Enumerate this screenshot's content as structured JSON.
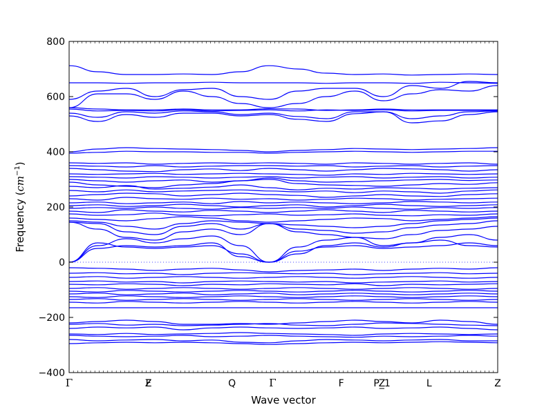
{
  "chart_data": {
    "type": "line",
    "title": "",
    "xlabel": "Wave vector",
    "ylabel_main": "Frequency (",
    "ylabel_unit": "cm",
    "ylabel_exp": "−1",
    "ylabel_close": ")",
    "ylim": [
      -400,
      800
    ],
    "yticks": [
      800,
      600,
      400,
      200,
      0,
      -200,
      -400
    ],
    "ytick_labels": [
      "800",
      "600",
      "400",
      "200",
      "0",
      "−200",
      "−400"
    ],
    "high_symmetry_points": [
      {
        "label": "Γ",
        "x": 0.0
      },
      {
        "label": "Z",
        "x": 0.185
      },
      {
        "label": "F",
        "x": 0.185
      },
      {
        "label": "Q",
        "x": 0.38
      },
      {
        "label": "Γ",
        "x": 0.475
      },
      {
        "label": "F",
        "x": 0.635
      },
      {
        "label": "P_1",
        "x": 0.73
      },
      {
        "label": "Z",
        "x": 0.73
      },
      {
        "label": "L",
        "x": 0.84
      },
      {
        "label": "Z",
        "x": 1.0
      }
    ],
    "zero_line": true,
    "band_color": "#0000ff",
    "segment_breaks": [
      0,
      0.185,
      0.38,
      0.475,
      0.635,
      0.73,
      0.84,
      1.0
    ],
    "series": [
      {
        "values": [
          712,
          690,
          680,
          680,
          682,
          680,
          690,
          712,
          700,
          685,
          680,
          682,
          678,
          680,
          682,
          680
        ]
      },
      {
        "values": [
          650,
          650,
          648,
          650,
          650,
          652,
          650,
          650,
          650,
          648,
          650,
          650,
          648,
          652,
          650,
          648
        ]
      },
      {
        "values": [
          590,
          620,
          630,
          600,
          625,
          630,
          600,
          590,
          620,
          630,
          630,
          600,
          640,
          630,
          655,
          650
        ]
      },
      {
        "values": [
          560,
          610,
          610,
          590,
          620,
          600,
          575,
          560,
          575,
          600,
          620,
          585,
          610,
          625,
          620,
          640
        ]
      },
      {
        "values": [
          560,
          555,
          552,
          552,
          555,
          552,
          552,
          556,
          555,
          550,
          552,
          555,
          552,
          552,
          552,
          552
        ]
      },
      {
        "values": [
          555,
          548,
          550,
          548,
          552,
          548,
          550,
          552,
          548,
          552,
          550,
          552,
          548,
          550,
          550,
          550
        ]
      },
      {
        "values": [
          540,
          525,
          545,
          540,
          548,
          545,
          535,
          540,
          528,
          520,
          545,
          545,
          520,
          530,
          545,
          548
        ]
      },
      {
        "values": [
          530,
          510,
          535,
          525,
          540,
          540,
          530,
          535,
          518,
          510,
          538,
          545,
          505,
          512,
          535,
          545
        ]
      },
      {
        "values": [
          400,
          410,
          415,
          412,
          410,
          408,
          405,
          400,
          405,
          408,
          412,
          410,
          408,
          410,
          412,
          415
        ]
      },
      {
        "values": [
          395,
          398,
          402,
          400,
          400,
          398,
          398,
          395,
          398,
          400,
          402,
          400,
          398,
          400,
          402,
          402
        ]
      },
      {
        "values": [
          360,
          358,
          360,
          355,
          358,
          360,
          358,
          360,
          358,
          355,
          360,
          358,
          355,
          358,
          360,
          355
        ]
      },
      {
        "values": [
          350,
          348,
          345,
          350,
          345,
          348,
          350,
          350,
          348,
          350,
          345,
          348,
          350,
          345,
          348,
          350
        ]
      },
      {
        "values": [
          340,
          335,
          330,
          328,
          335,
          338,
          332,
          340,
          335,
          330,
          335,
          340,
          338,
          335,
          330,
          335
        ]
      },
      {
        "values": [
          320,
          318,
          320,
          322,
          318,
          320,
          322,
          320,
          318,
          315,
          320,
          318,
          322,
          320,
          318,
          320
        ]
      },
      {
        "values": [
          310,
          308,
          305,
          310,
          308,
          305,
          308,
          310,
          305,
          308,
          310,
          305,
          308,
          310,
          305,
          308
        ]
      },
      {
        "values": [
          300,
          295,
          290,
          295,
          298,
          290,
          295,
          305,
          295,
          290,
          292,
          295,
          298,
          300,
          296,
          298
        ]
      },
      {
        "values": [
          290,
          280,
          275,
          270,
          280,
          285,
          295,
          300,
          285,
          280,
          278,
          275,
          280,
          285,
          282,
          288
        ]
      },
      {
        "values": [
          275,
          270,
          278,
          265,
          268,
          272,
          280,
          270,
          262,
          268,
          265,
          270,
          268,
          265,
          268,
          270
        ]
      },
      {
        "values": [
          260,
          255,
          262,
          255,
          258,
          260,
          262,
          258,
          255,
          258,
          252,
          258,
          255,
          250,
          258,
          262
        ]
      },
      {
        "values": [
          240,
          245,
          250,
          248,
          240,
          245,
          250,
          245,
          242,
          235,
          240,
          245,
          240,
          238,
          245,
          248
        ]
      },
      {
        "values": [
          230,
          225,
          235,
          230,
          228,
          232,
          228,
          230,
          225,
          228,
          232,
          230,
          225,
          228,
          230,
          232
        ]
      },
      {
        "values": [
          215,
          218,
          212,
          215,
          218,
          212,
          220,
          215,
          218,
          215,
          212,
          215,
          220,
          218,
          215,
          218
        ]
      },
      {
        "values": [
          205,
          208,
          202,
          205,
          210,
          205,
          200,
          205,
          208,
          200,
          205,
          210,
          205,
          202,
          205,
          208
        ]
      },
      {
        "values": [
          195,
          198,
          195,
          200,
          195,
          192,
          198,
          195,
          198,
          195,
          200,
          195,
          192,
          198,
          195,
          198
        ]
      },
      {
        "values": [
          185,
          180,
          190,
          185,
          182,
          188,
          185,
          180,
          185,
          190,
          185,
          180,
          188,
          185,
          182,
          185
        ]
      },
      {
        "values": [
          175,
          170,
          172,
          178,
          170,
          168,
          172,
          175,
          170,
          172,
          175,
          170,
          168,
          172,
          170,
          175
        ]
      },
      {
        "values": [
          160,
          155,
          150,
          158,
          165,
          160,
          150,
          145,
          150,
          155,
          160,
          158,
          150,
          155,
          160,
          165
        ]
      },
      {
        "values": [
          150,
          145,
          130,
          120,
          140,
          150,
          145,
          140,
          135,
          130,
          125,
          130,
          140,
          150,
          155,
          160
        ]
      },
      {
        "values": [
          145,
          140,
          110,
          100,
          130,
          140,
          120,
          140,
          120,
          115,
          105,
          110,
          125,
          135,
          140,
          150
        ]
      },
      {
        "values": [
          145,
          120,
          90,
          80,
          110,
          120,
          100,
          140,
          110,
          100,
          90,
          85,
          100,
          115,
          120,
          130
        ]
      },
      {
        "values": [
          0,
          60,
          85,
          70,
          85,
          95,
          60,
          0,
          55,
          80,
          90,
          60,
          70,
          90,
          100,
          80
        ]
      },
      {
        "values": [
          0,
          70,
          55,
          50,
          55,
          60,
          30,
          0,
          40,
          55,
          60,
          50,
          55,
          60,
          70,
          60
        ]
      },
      {
        "values": [
          0,
          50,
          60,
          55,
          60,
          70,
          20,
          0,
          30,
          60,
          70,
          55,
          70,
          80,
          60,
          55
        ]
      },
      {
        "values": [
          -20,
          -22,
          -25,
          -30,
          -25,
          -22,
          -28,
          -35,
          -30,
          -28,
          -25,
          -30,
          -25,
          -22,
          -25,
          -20
        ]
      },
      {
        "values": [
          -40,
          -38,
          -42,
          -40,
          -45,
          -40,
          -38,
          -40,
          -42,
          -40,
          -45,
          -42,
          -40,
          -38,
          -42,
          -40
        ]
      },
      {
        "values": [
          -55,
          -52,
          -58,
          -55,
          -52,
          -55,
          -58,
          -55,
          -52,
          -55,
          -58,
          -55,
          -52,
          -55,
          -58,
          -55
        ]
      },
      {
        "values": [
          -70,
          -68,
          -72,
          -70,
          -75,
          -70,
          -68,
          -70,
          -72,
          -70,
          -75,
          -72,
          -70,
          -68,
          -72,
          -70
        ]
      },
      {
        "values": [
          -80,
          -82,
          -78,
          -80,
          -85,
          -80,
          -82,
          -78,
          -80,
          -82,
          -78,
          -85,
          -80,
          -82,
          -80,
          -78
        ]
      },
      {
        "values": [
          -95,
          -92,
          -98,
          -95,
          -92,
          -95,
          -98,
          -95,
          -92,
          -95,
          -98,
          -95,
          -92,
          -95,
          -98,
          -95
        ]
      },
      {
        "values": [
          -105,
          -108,
          -102,
          -105,
          -108,
          -105,
          -102,
          -105,
          -108,
          -105,
          -102,
          -105,
          -108,
          -105,
          -102,
          -105
        ]
      },
      {
        "values": [
          -115,
          -112,
          -118,
          -115,
          -112,
          -118,
          -115,
          -112,
          -118,
          -115,
          -112,
          -115,
          -118,
          -115,
          -112,
          -115
        ]
      },
      {
        "values": [
          -125,
          -128,
          -122,
          -125,
          -128,
          -125,
          -122,
          -125,
          -128,
          -125,
          -122,
          -125,
          -128,
          -125,
          -122,
          -125
        ]
      },
      {
        "values": [
          -135,
          -132,
          -138,
          -135,
          -132,
          -135,
          -138,
          -135,
          -132,
          -135,
          -138,
          -135,
          -132,
          -135,
          -138,
          -135
        ]
      },
      {
        "values": [
          -145,
          -148,
          -142,
          -145,
          -148,
          -145,
          -142,
          -145,
          -148,
          -145,
          -142,
          -145,
          -148,
          -145,
          -142,
          -145
        ]
      },
      {
        "values": [
          -165,
          -165,
          -165,
          -165,
          -165,
          -165,
          -165,
          -165,
          -165,
          -165,
          -165,
          -165,
          -165,
          -165,
          -165,
          -165
        ]
      },
      {
        "values": [
          -220,
          -215,
          -210,
          -215,
          -225,
          -225,
          -222,
          -225,
          -220,
          -215,
          -210,
          -215,
          -220,
          -210,
          -215,
          -225
        ]
      },
      {
        "values": [
          -225,
          -222,
          -228,
          -225,
          -230,
          -228,
          -225,
          -222,
          -228,
          -230,
          -225,
          -220,
          -222,
          -225,
          -228,
          -230
        ]
      },
      {
        "values": [
          -240,
          -235,
          -238,
          -235,
          -245,
          -238,
          -235,
          -238,
          -240,
          -238,
          -235,
          -240,
          -238,
          -235,
          -240,
          -245
        ]
      },
      {
        "values": [
          -260,
          -262,
          -258,
          -262,
          -260,
          -258,
          -255,
          -258,
          -260,
          -262,
          -265,
          -260,
          -258,
          -260,
          -262,
          -260
        ]
      },
      {
        "values": [
          -265,
          -268,
          -270,
          -268,
          -265,
          -270,
          -268,
          -265,
          -268,
          -270,
          -272,
          -268,
          -270,
          -268,
          -265,
          -268
        ]
      },
      {
        "values": [
          -280,
          -285,
          -282,
          -280,
          -285,
          -282,
          -290,
          -292,
          -285,
          -280,
          -282,
          -285,
          -282,
          -280,
          -285,
          -285
        ]
      },
      {
        "values": [
          -295,
          -292,
          -290,
          -292,
          -290,
          -292,
          -295,
          -298,
          -295,
          -292,
          -290,
          -292,
          -290,
          -288,
          -290,
          -292
        ]
      }
    ]
  }
}
